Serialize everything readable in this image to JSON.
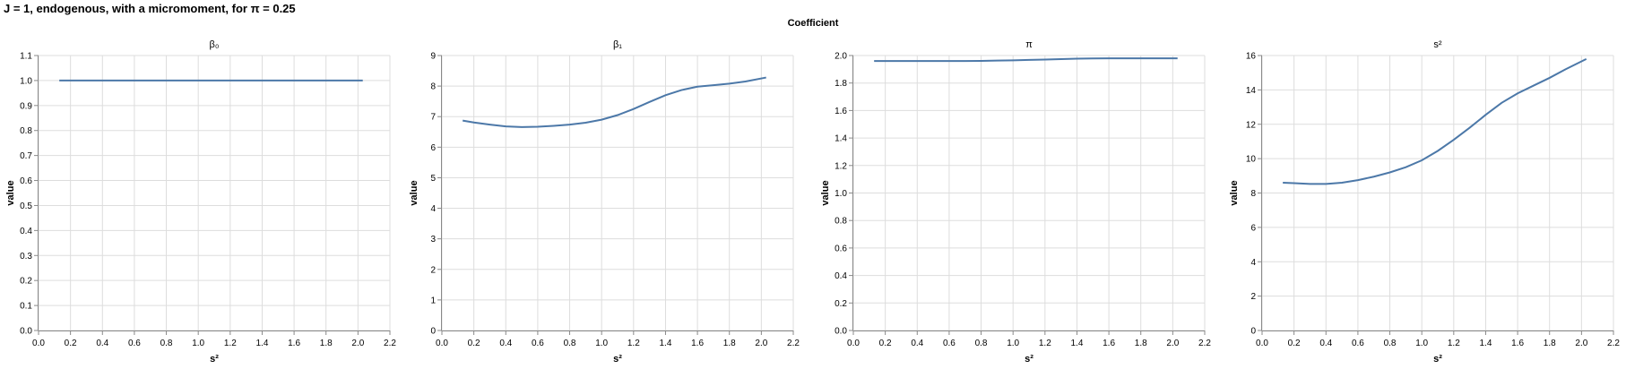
{
  "title": "J = 1, endogenous, with a micromoment,  for π = 0.25",
  "facet_header": "Coefficient",
  "colors": {
    "line": "#4c78a8",
    "grid": "#dddddd",
    "axis": "#888888"
  },
  "chart_data": [
    {
      "type": "line",
      "title": "β₀",
      "xlabel": "s²",
      "ylabel": "value",
      "xlim": [
        0,
        2.2
      ],
      "ylim": [
        0,
        1.1
      ],
      "xticks": [
        0,
        0.2,
        0.4,
        0.6,
        0.8,
        1.0,
        1.2,
        1.4,
        1.6,
        1.8,
        2.0,
        2.2
      ],
      "yticks": [
        0,
        0.1,
        0.2,
        0.3,
        0.4,
        0.5,
        0.6,
        0.7,
        0.8,
        0.9,
        1.0,
        1.1
      ],
      "grid": true,
      "x": [
        0.13,
        0.2,
        0.3,
        0.4,
        0.5,
        0.6,
        0.7,
        0.8,
        0.9,
        1.0,
        1.1,
        1.2,
        1.3,
        1.4,
        1.5,
        1.6,
        1.7,
        1.8,
        1.9,
        2.03
      ],
      "y": [
        1.0,
        1.0,
        1.0,
        1.0,
        1.0,
        1.0,
        1.0,
        1.0,
        1.0,
        1.0,
        1.0,
        1.0,
        1.0,
        1.0,
        1.0,
        1.0,
        1.0,
        1.0,
        1.0,
        1.0
      ]
    },
    {
      "type": "line",
      "title": "β₁",
      "xlabel": "s²",
      "ylabel": "value",
      "xlim": [
        0,
        2.2
      ],
      "ylim": [
        0,
        9
      ],
      "xticks": [
        0,
        0.2,
        0.4,
        0.6,
        0.8,
        1.0,
        1.2,
        1.4,
        1.6,
        1.8,
        2.0,
        2.2
      ],
      "yticks": [
        0,
        1,
        2,
        3,
        4,
        5,
        6,
        7,
        8,
        9
      ],
      "grid": true,
      "x": [
        0.13,
        0.2,
        0.3,
        0.4,
        0.5,
        0.6,
        0.7,
        0.8,
        0.9,
        1.0,
        1.1,
        1.2,
        1.3,
        1.4,
        1.5,
        1.6,
        1.7,
        1.8,
        1.9,
        2.03
      ],
      "y": [
        6.87,
        6.81,
        6.74,
        6.68,
        6.66,
        6.67,
        6.7,
        6.74,
        6.8,
        6.9,
        7.05,
        7.25,
        7.48,
        7.7,
        7.87,
        7.98,
        8.03,
        8.08,
        8.15,
        8.28
      ]
    },
    {
      "type": "line",
      "title": "π",
      "xlabel": "s²",
      "ylabel": "value",
      "xlim": [
        0,
        2.2
      ],
      "ylim": [
        0,
        2.0
      ],
      "xticks": [
        0,
        0.2,
        0.4,
        0.6,
        0.8,
        1.0,
        1.2,
        1.4,
        1.6,
        1.8,
        2.0,
        2.2
      ],
      "yticks": [
        0,
        0.2,
        0.4,
        0.6,
        0.8,
        1.0,
        1.2,
        1.4,
        1.6,
        1.8,
        2.0
      ],
      "grid": true,
      "x": [
        0.13,
        0.2,
        0.3,
        0.4,
        0.5,
        0.6,
        0.7,
        0.8,
        0.9,
        1.0,
        1.1,
        1.2,
        1.3,
        1.4,
        1.5,
        1.6,
        1.7,
        1.8,
        1.9,
        2.03
      ],
      "y": [
        1.96,
        1.96,
        1.96,
        1.96,
        1.96,
        1.96,
        1.96,
        1.961,
        1.963,
        1.965,
        1.968,
        1.971,
        1.974,
        1.977,
        1.979,
        1.98,
        1.98,
        1.98,
        1.98,
        1.98
      ]
    },
    {
      "type": "line",
      "title": "s²",
      "xlabel": "s²",
      "ylabel": "value",
      "xlim": [
        0,
        2.2
      ],
      "ylim": [
        0,
        16
      ],
      "xticks": [
        0,
        0.2,
        0.4,
        0.6,
        0.8,
        1.0,
        1.2,
        1.4,
        1.6,
        1.8,
        2.0,
        2.2
      ],
      "yticks": [
        0,
        2,
        4,
        6,
        8,
        10,
        12,
        14,
        16
      ],
      "grid": true,
      "x": [
        0.13,
        0.2,
        0.3,
        0.4,
        0.5,
        0.6,
        0.7,
        0.8,
        0.9,
        1.0,
        1.1,
        1.2,
        1.3,
        1.4,
        1.5,
        1.6,
        1.7,
        1.8,
        1.9,
        2.03
      ],
      "y": [
        8.6,
        8.57,
        8.53,
        8.53,
        8.6,
        8.75,
        8.95,
        9.2,
        9.5,
        9.9,
        10.45,
        11.1,
        11.8,
        12.55,
        13.25,
        13.8,
        14.25,
        14.7,
        15.2,
        15.8
      ]
    }
  ]
}
